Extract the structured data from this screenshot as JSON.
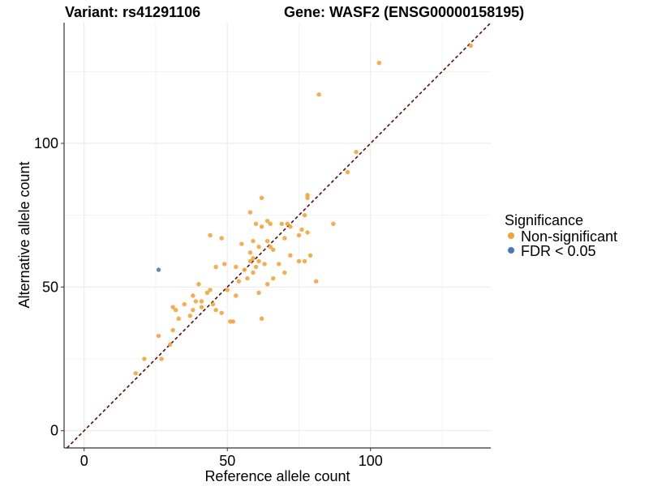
{
  "chart_data": {
    "type": "scatter",
    "title_left": "Variant: rs41291106",
    "title_right": "Gene: WASF2 (ENSG00000158195)",
    "xlabel": "Reference allele count",
    "ylabel": "Alternative allele count",
    "xlim": [
      -7,
      142
    ],
    "ylim": [
      -6,
      142
    ],
    "x_ticks": [
      0,
      50,
      100
    ],
    "y_ticks": [
      0,
      50,
      100
    ],
    "grid": true,
    "legend": {
      "title": "Significance",
      "placement": "right",
      "entries": [
        {
          "label": "Non-significant",
          "color": "#f5a235"
        },
        {
          "label": "FDR < 0.05",
          "color": "#4a78b5"
        }
      ]
    },
    "reference_line": {
      "slope": 1,
      "intercept": 0,
      "style": "dashed",
      "color": "#5a0a14"
    },
    "series": [
      {
        "name": "Non-significant",
        "color": "#f5a235",
        "points": [
          [
            103,
            128
          ],
          [
            135,
            134
          ],
          [
            82,
            117
          ],
          [
            95,
            97
          ],
          [
            92,
            90
          ],
          [
            78,
            82
          ],
          [
            78,
            81
          ],
          [
            62,
            81
          ],
          [
            58,
            76
          ],
          [
            77,
            75
          ],
          [
            60,
            72
          ],
          [
            62,
            71
          ],
          [
            64,
            73
          ],
          [
            65,
            72
          ],
          [
            69,
            72
          ],
          [
            71,
            72
          ],
          [
            72,
            71
          ],
          [
            87,
            72
          ],
          [
            76,
            70
          ],
          [
            55,
            65
          ],
          [
            61,
            64
          ],
          [
            66,
            63
          ],
          [
            70,
            67
          ],
          [
            75,
            68
          ],
          [
            78,
            69
          ],
          [
            44,
            68
          ],
          [
            48,
            67
          ],
          [
            59,
            66
          ],
          [
            64,
            66
          ],
          [
            65,
            64
          ],
          [
            46,
            57
          ],
          [
            49,
            58
          ],
          [
            53,
            57
          ],
          [
            56,
            56
          ],
          [
            58,
            62
          ],
          [
            59,
            60
          ],
          [
            61,
            59
          ],
          [
            63,
            58
          ],
          [
            68,
            58
          ],
          [
            72,
            61
          ],
          [
            75,
            59
          ],
          [
            77,
            59
          ],
          [
            79,
            61
          ],
          [
            58,
            59
          ],
          [
            60,
            57
          ],
          [
            38,
            47
          ],
          [
            40,
            51
          ],
          [
            41,
            45
          ],
          [
            43,
            48
          ],
          [
            44,
            49
          ],
          [
            45,
            44
          ],
          [
            46,
            42
          ],
          [
            48,
            41
          ],
          [
            50,
            49
          ],
          [
            51,
            38
          ],
          [
            52,
            38
          ],
          [
            53,
            47
          ],
          [
            54,
            52
          ],
          [
            57,
            53
          ],
          [
            59,
            55
          ],
          [
            61,
            48
          ],
          [
            62,
            39
          ],
          [
            64,
            51
          ],
          [
            66,
            53
          ],
          [
            70,
            55
          ],
          [
            31,
            43
          ],
          [
            32,
            42
          ],
          [
            33,
            39
          ],
          [
            35,
            44
          ],
          [
            37,
            40
          ],
          [
            38,
            42
          ],
          [
            39,
            45
          ],
          [
            41,
            43
          ],
          [
            30,
            30
          ],
          [
            31,
            35
          ],
          [
            27,
            25
          ],
          [
            26,
            33
          ],
          [
            21,
            25
          ],
          [
            18,
            20
          ],
          [
            81,
            52
          ]
        ]
      },
      {
        "name": "FDR < 0.05",
        "color": "#4a78b5",
        "points": [
          [
            26,
            56
          ]
        ]
      }
    ]
  }
}
